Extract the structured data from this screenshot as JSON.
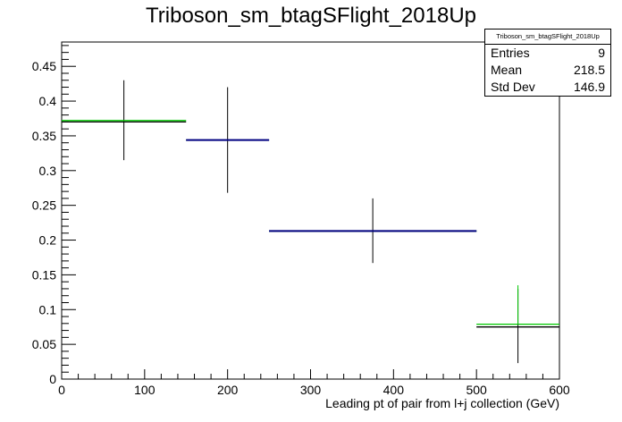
{
  "chart_data": {
    "type": "histogram",
    "title": "Triboson_sm_btagSFlight_2018Up",
    "xlabel": "Leading pt of pair from l+j collection (GeV)",
    "ylabel": "",
    "xlim": [
      0,
      600
    ],
    "ylim": [
      0,
      0.485
    ],
    "x_ticks": [
      0,
      100,
      200,
      300,
      400,
      500,
      600
    ],
    "y_ticks": [
      0,
      0.05,
      0.1,
      0.15,
      0.2,
      0.25,
      0.3,
      0.35,
      0.4,
      0.45
    ],
    "grid": false,
    "series": [
      {
        "color": "#000000",
        "bins": [
          {
            "x_low": 0,
            "x_high": 150,
            "y": 0.37,
            "err_low": 0.315,
            "err_high": 0.43
          },
          {
            "x_low": 150,
            "x_high": 250,
            "y": 0.344,
            "err_low": 0.268,
            "err_high": 0.42
          },
          {
            "x_low": 250,
            "x_high": 500,
            "y": 0.213,
            "err_low": 0.167,
            "err_high": 0.26
          },
          {
            "x_low": 500,
            "x_high": 600,
            "y": 0.075,
            "err_low": 0.023,
            "err_high": 0.13
          }
        ]
      },
      {
        "color": "#00c800",
        "bins": [
          {
            "x_low": 0,
            "x_high": 150,
            "y": 0.372
          },
          {
            "x_low": 150,
            "x_high": 250,
            "y": 0.344
          },
          {
            "x_low": 250,
            "x_high": 500,
            "y": 0.213
          },
          {
            "x_low": 500,
            "x_high": 600,
            "y": 0.079,
            "err_high": 0.135
          }
        ]
      },
      {
        "color": "#000080",
        "bins": [
          {
            "x_low": 150,
            "x_high": 250,
            "y": 0.344
          },
          {
            "x_low": 250,
            "x_high": 500,
            "y": 0.213
          }
        ]
      }
    ],
    "stats": {
      "title": "Triboson_sm_btagSFlight_2018Up",
      "entries_label": "Entries",
      "entries": "9",
      "mean_label": "Mean",
      "mean": "218.5",
      "stddev_label": "Std Dev",
      "stddev": "146.9"
    }
  }
}
